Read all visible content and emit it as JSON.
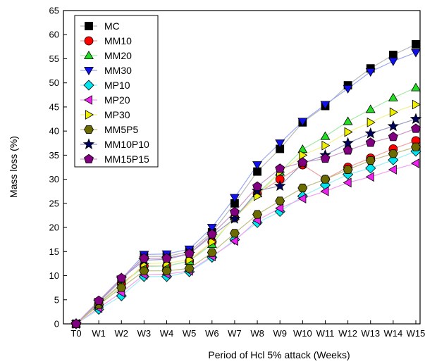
{
  "chart_data": {
    "type": "line",
    "xlabel": "Period of Hcl 5% attack (Weeks)",
    "ylabel": "Mass loss (%)",
    "categories": [
      "T0",
      "W1",
      "W2",
      "W3",
      "W4",
      "W5",
      "W6",
      "W7",
      "W8",
      "W9",
      "W10",
      "W11",
      "W12",
      "W13",
      "W14",
      "W15"
    ],
    "ylim": [
      0,
      65
    ],
    "yticks": [
      0,
      5,
      10,
      15,
      20,
      25,
      30,
      35,
      40,
      45,
      50,
      55,
      60,
      65
    ],
    "grid": false,
    "legend_position": "top-left",
    "series": [
      {
        "name": "MC",
        "marker": "square",
        "color": "#000000",
        "line": "#b8b8b8",
        "values": [
          0,
          4.5,
          9.0,
          14.0,
          14.0,
          15.0,
          19.0,
          25.0,
          31.6,
          36.3,
          41.8,
          45.2,
          49.5,
          53.0,
          55.8,
          58.0
        ]
      },
      {
        "name": "MM10",
        "marker": "circle",
        "color": "#ff0000",
        "line": "#f2a0a0",
        "values": [
          0,
          4.3,
          8.3,
          12.0,
          12.0,
          13.0,
          17.0,
          22.0,
          27.0,
          30.0,
          33.0,
          30.0,
          32.5,
          34.4,
          36.3,
          38.0
        ]
      },
      {
        "name": "MM20",
        "marker": "triangle-up",
        "color": "#22dd22",
        "line": "#a6eaa6",
        "values": [
          0,
          4.1,
          8.1,
          11.9,
          12.0,
          13.0,
          16.5,
          22.3,
          27.0,
          31.5,
          36.2,
          38.9,
          42.0,
          44.5,
          46.9,
          49.0
        ]
      },
      {
        "name": "MM30",
        "marker": "triangle-down",
        "color": "#1010ee",
        "line": "#9aa8f0",
        "values": [
          0,
          4.6,
          9.3,
          14.4,
          14.5,
          15.5,
          20.0,
          26.2,
          33.0,
          37.5,
          42.0,
          45.5,
          48.8,
          52.3,
          54.5,
          56.3
        ]
      },
      {
        "name": "MP10",
        "marker": "diamond",
        "color": "#00e5ee",
        "line": "#9cf0f4",
        "values": [
          0,
          3.0,
          5.8,
          9.8,
          9.8,
          10.8,
          13.8,
          17.5,
          21.0,
          23.3,
          26.5,
          28.8,
          31.0,
          32.3,
          34.0,
          35.8
        ]
      },
      {
        "name": "MP20",
        "marker": "triangle-left",
        "color": "#ee22ee",
        "line": "#f2a2f2",
        "values": [
          0,
          3.3,
          6.5,
          10.2,
          10.3,
          11.0,
          14.0,
          17.2,
          21.5,
          24.0,
          26.0,
          27.5,
          29.3,
          30.5,
          32.0,
          33.3
        ]
      },
      {
        "name": "MP30",
        "marker": "triangle-right",
        "color": "#eeee00",
        "line": "#f2f290",
        "values": [
          0,
          3.8,
          7.7,
          12.5,
          12.6,
          13.3,
          17.0,
          22.0,
          26.5,
          31.5,
          35.0,
          37.0,
          39.8,
          41.8,
          43.9,
          45.5
        ]
      },
      {
        "name": "MM5P5",
        "marker": "hexagon",
        "color": "#6b6b00",
        "line": "#bdbd80",
        "values": [
          0,
          4.0,
          7.5,
          11.0,
          11.0,
          11.5,
          14.8,
          18.8,
          22.7,
          25.5,
          28.2,
          30.0,
          32.0,
          33.9,
          35.3,
          36.7
        ]
      },
      {
        "name": "MM10P10",
        "marker": "star",
        "color": "#000060",
        "line": "#9a9ac8",
        "values": [
          0,
          4.6,
          9.4,
          13.2,
          13.4,
          14.5,
          18.3,
          21.8,
          27.6,
          28.6,
          33.3,
          35.0,
          37.5,
          39.5,
          41.0,
          42.5
        ]
      },
      {
        "name": "MM15P15",
        "marker": "pentagon",
        "color": "#800080",
        "line": "#c89ac8",
        "values": [
          0,
          4.8,
          9.5,
          13.6,
          13.6,
          14.6,
          18.6,
          23.2,
          28.5,
          32.2,
          33.5,
          34.3,
          36.0,
          37.6,
          38.8,
          40.5
        ]
      }
    ]
  }
}
